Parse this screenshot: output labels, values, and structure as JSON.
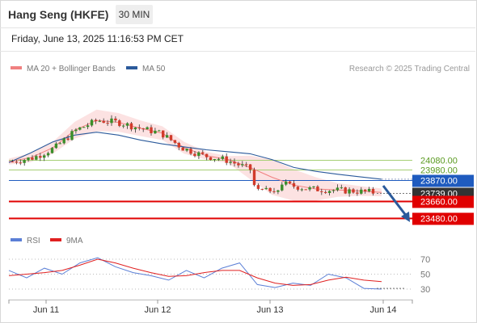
{
  "header": {
    "instrument": "Hang Seng (HKFE)",
    "timeframe": "30 MIN",
    "datetime": "Friday, June 13, 2025 11:16:53 PM CET"
  },
  "legend": {
    "ma20_label": "MA 20 + Bollinger Bands",
    "ma20_color": "#f08080",
    "ma50_label": "MA 50",
    "ma50_color": "#2b5a9b",
    "credit": "Research © 2025 Trading Central"
  },
  "rsi_legend": {
    "rsi_label": "RSI",
    "rsi_color": "#5b7fd6",
    "ma9_label": "9MA",
    "ma9_color": "#e02020"
  },
  "chart_data": [
    {
      "type": "candlestick",
      "x_ticks": [
        "Jun 11",
        "Jun 12",
        "Jun 13",
        "Jun 14"
      ],
      "ylim": [
        23360,
        24720
      ],
      "price_levels": [
        {
          "value": 24080,
          "label": "24080.00",
          "kind": "resistance",
          "color": "#a6cf74"
        },
        {
          "value": 23980,
          "label": "23980.00",
          "kind": "resistance",
          "color": "#a6cf74"
        },
        {
          "value": 23870,
          "label": "23870.00",
          "kind": "pivot",
          "color": "#1f5bbf"
        },
        {
          "value": 23739,
          "label": "23739.00",
          "kind": "last_price",
          "color": "#333333"
        },
        {
          "value": 23660,
          "label": "23660.00",
          "kind": "support",
          "color": "#e00000"
        },
        {
          "value": 23480,
          "label": "23480.00",
          "kind": "support",
          "color": "#e00000"
        }
      ],
      "series": [
        {
          "name": "MA 20 + Bollinger Bands",
          "values": [
            24060,
            24100,
            24200,
            24380,
            24480,
            24460,
            24400,
            24350,
            24200,
            24120,
            24080,
            24000,
            23900,
            23820,
            23780,
            23770,
            23760,
            23745
          ]
        },
        {
          "name": "MA 50",
          "values": [
            24050,
            24150,
            24260,
            24330,
            24360,
            24330,
            24280,
            24240,
            24210,
            24180,
            24160,
            24140,
            24080,
            24000,
            23960,
            23930,
            23905,
            23880
          ]
        }
      ]
    },
    {
      "type": "line",
      "x_ticks": [
        "Jun 11",
        "Jun 12",
        "Jun 13",
        "Jun 14"
      ],
      "ylim": [
        25,
        75
      ],
      "y_ticks": [
        "70",
        "50",
        "30"
      ],
      "series": [
        {
          "name": "RSI",
          "values": [
            55,
            45,
            58,
            50,
            65,
            72,
            60,
            52,
            48,
            42,
            55,
            45,
            58,
            65,
            36,
            32,
            38,
            35,
            50,
            45,
            31,
            30
          ]
        },
        {
          "name": "9MA",
          "values": [
            48,
            50,
            52,
            55,
            62,
            70,
            65,
            58,
            52,
            47,
            48,
            52,
            55,
            55,
            45,
            38,
            35,
            36,
            42,
            46,
            42,
            40
          ]
        }
      ]
    }
  ]
}
